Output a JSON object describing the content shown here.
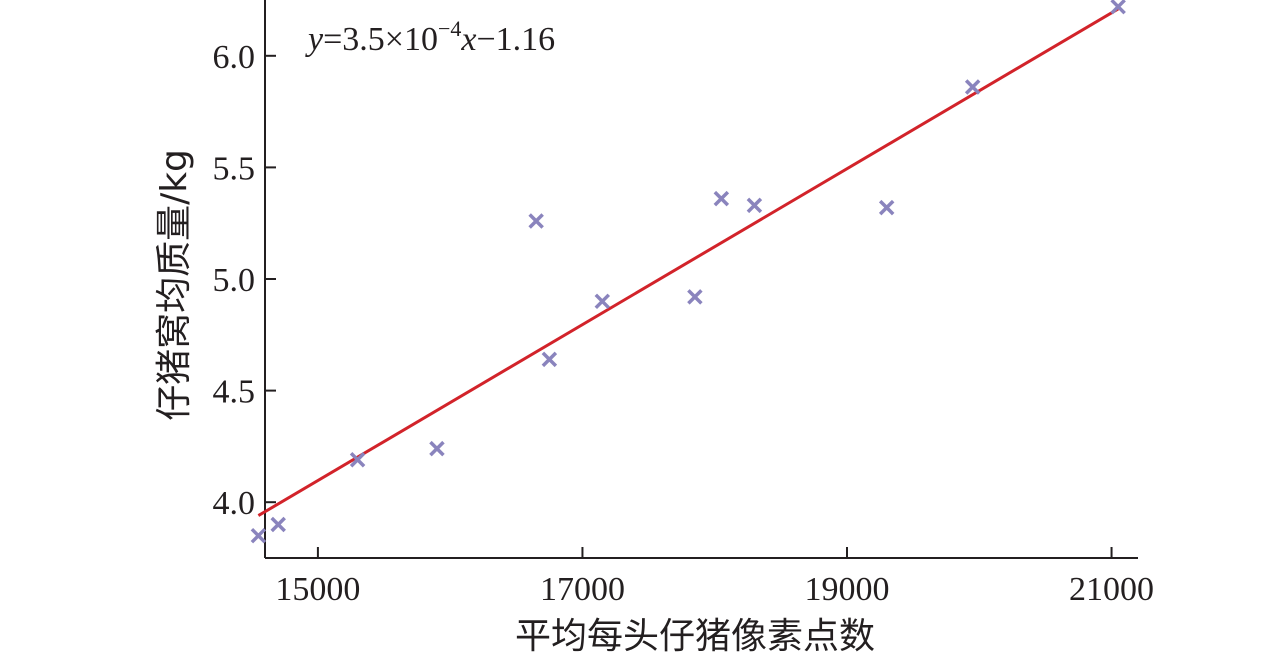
{
  "chart_data": {
    "type": "scatter",
    "xlabel": "平均每头仔猪像素点数",
    "ylabel": "仔猪窝均质量/kg",
    "xlim": [
      14600,
      21200
    ],
    "ylim": [
      3.75,
      6.25
    ],
    "xticks": [
      15000,
      17000,
      19000,
      21000
    ],
    "yticks": [
      4.0,
      4.5,
      5.0,
      5.5,
      6.0
    ],
    "xtick_labels": [
      "15000",
      "17000",
      "19000",
      "21000"
    ],
    "ytick_labels": [
      "4.0",
      "4.5",
      "5.0",
      "5.5",
      "6.0"
    ],
    "grid": false,
    "annotation": {
      "y_var": "y",
      "eq_a": "=3.5×10",
      "exponent": "−4",
      "x_var": "x",
      "eq_b": "−1.16"
    },
    "points": [
      {
        "x": 14550,
        "y": 3.85
      },
      {
        "x": 14700,
        "y": 3.9
      },
      {
        "x": 15300,
        "y": 4.19
      },
      {
        "x": 15900,
        "y": 4.24
      },
      {
        "x": 16650,
        "y": 5.26
      },
      {
        "x": 16750,
        "y": 4.64
      },
      {
        "x": 17150,
        "y": 4.9
      },
      {
        "x": 17850,
        "y": 4.92
      },
      {
        "x": 18050,
        "y": 5.36
      },
      {
        "x": 18300,
        "y": 5.33
      },
      {
        "x": 19300,
        "y": 5.32
      },
      {
        "x": 19950,
        "y": 5.86
      },
      {
        "x": 21050,
        "y": 6.22
      }
    ],
    "fit_line": {
      "x1": 14550,
      "x2": 21050,
      "y1": 3.94,
      "y2": 6.21
    },
    "marker_color": "#8a84bd",
    "line_color": "#d2232a",
    "axis_color": "#231f20"
  }
}
